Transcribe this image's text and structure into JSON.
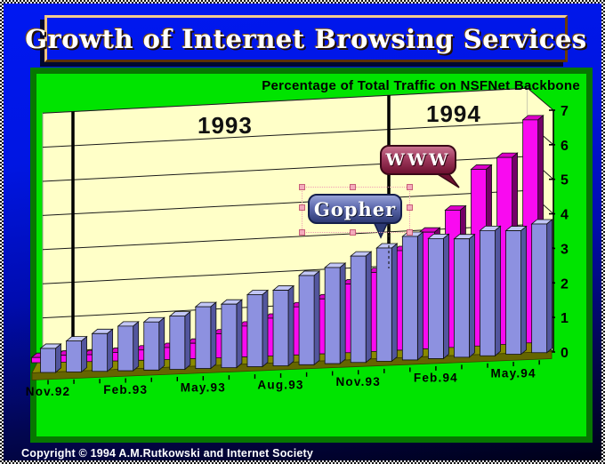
{
  "title_bar": {
    "text": "Growth of Internet Browsing Services"
  },
  "footer": {
    "copyright": "Copyright © 1994 A.M.Rutkowski and Internet Society"
  },
  "chart_data": {
    "type": "bar",
    "style": "3d-perspective",
    "title": "Percentage of Total Traffic on NSFNet Backbone",
    "xlabel": "",
    "ylabel": "",
    "ylim": [
      0,
      7
    ],
    "yticks": [
      0,
      1,
      2,
      3,
      4,
      5,
      6,
      7
    ],
    "grid": true,
    "categories": [
      "Nov.92",
      "Dec.92",
      "Jan.93",
      "Feb.93",
      "Mar.93",
      "Apr.93",
      "May.93",
      "Jun.93",
      "Jul.93",
      "Aug.93",
      "Sep.93",
      "Oct.93",
      "Nov.93",
      "Dec.93",
      "Jan.94",
      "Feb.94",
      "Mar.94",
      "Apr.94",
      "May.94",
      "Jun.94"
    ],
    "tick_label_every": 3,
    "visible_tick_labels": [
      "Nov.92",
      "Feb.93",
      "May.93",
      "Aug.93",
      "Nov.93",
      "Feb.94",
      "May.94"
    ],
    "year_labels": [
      {
        "text": "1993"
      },
      {
        "text": "1994"
      }
    ],
    "annotations": [
      {
        "text": "WWW"
      },
      {
        "text": "Gopher"
      }
    ],
    "series": [
      {
        "name": "WWW",
        "depth": "back",
        "colors": {
          "face": "#f90af0",
          "top": "#dc00c8",
          "side": "#740068"
        },
        "values": [
          0.15,
          0.2,
          0.2,
          0.25,
          0.3,
          0.35,
          0.45,
          0.7,
          0.9,
          1.1,
          1.4,
          1.6,
          2.0,
          2.3,
          2.9,
          3.4,
          4.0,
          5.15,
          5.45,
          6.5
        ]
      },
      {
        "name": "Gopher",
        "depth": "front",
        "colors": {
          "face": "#8d91e0",
          "top": "#c2c6f6",
          "side": "#53569e"
        },
        "values": [
          0.7,
          0.9,
          1.1,
          1.3,
          1.4,
          1.55,
          1.8,
          1.85,
          2.1,
          2.2,
          2.6,
          2.8,
          3.1,
          3.3,
          3.6,
          3.5,
          3.45,
          3.65,
          3.6,
          3.75
        ]
      }
    ]
  },
  "palette": {
    "wall": "#ffffc8",
    "gridline": "#1a1a1a",
    "floor": "#8a8a00",
    "floor_edge": "#656500",
    "axis": "#000000",
    "panel_green": "#00e400",
    "panel_border": "#077700",
    "frame_blue_top": "#0018f2",
    "frame_blue_bottom": "#000018",
    "banner_orange": "#c07018",
    "year_separator": "#000000"
  }
}
